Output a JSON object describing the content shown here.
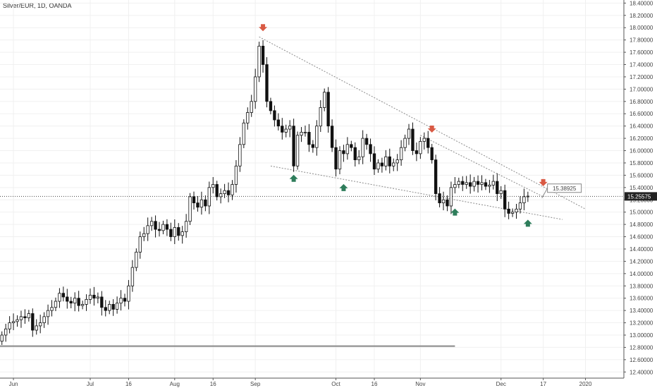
{
  "title": "Silver/EUR, 1D, OANDA",
  "colors": {
    "up": "#ffffff",
    "down": "#111111",
    "wick": "#111111",
    "grid": "#f0f0f0",
    "axis": "#555555",
    "arrow_up": "#2e7d5b",
    "arrow_down": "#d95a44",
    "price_line": "#444444",
    "trendline": "#8a8a8a",
    "support": "#888888"
  },
  "chart_data": {
    "type": "candlestick",
    "symbol": "Silver/EUR",
    "timeframe": "1D",
    "source": "OANDA",
    "y_axis": {
      "side": "right",
      "ylim": [
        12.3,
        18.45
      ],
      "ticks": [
        "12.40000",
        "12.60000",
        "12.80000",
        "13.00000",
        "13.20000",
        "13.40000",
        "13.60000",
        "13.80000",
        "14.00000",
        "14.20000",
        "14.40000",
        "14.60000",
        "14.80000",
        "15.00000",
        "15.20000",
        "15.40000",
        "15.60000",
        "15.80000",
        "16.00000",
        "16.20000",
        "16.40000",
        "16.60000",
        "16.80000",
        "17.00000",
        "17.20000",
        "17.40000",
        "17.60000",
        "17.80000",
        "18.00000",
        "18.20000",
        "18.40000"
      ],
      "tick_values": [
        12.4,
        12.6,
        12.8,
        13.0,
        13.2,
        13.4,
        13.6,
        13.8,
        14.0,
        14.2,
        14.4,
        14.6,
        14.8,
        15.0,
        15.2,
        15.4,
        15.6,
        15.8,
        16.0,
        16.2,
        16.4,
        16.6,
        16.8,
        17.0,
        17.2,
        17.4,
        17.6,
        17.8,
        18.0,
        18.2,
        18.4
      ]
    },
    "x_axis": {
      "labels": [
        {
          "text": "Jun",
          "idx": 3
        },
        {
          "text": "Jul",
          "idx": 23
        },
        {
          "text": "16",
          "idx": 33
        },
        {
          "text": "Aug",
          "idx": 45
        },
        {
          "text": "16",
          "idx": 55
        },
        {
          "text": "Sep",
          "idx": 66
        },
        {
          "text": "Oct",
          "idx": 87
        },
        {
          "text": "16",
          "idx": 97
        },
        {
          "text": "Nov",
          "idx": 109
        },
        {
          "text": "Dec",
          "idx": 130
        },
        {
          "text": "17",
          "idx": 141
        },
        {
          "text": "2020",
          "idx": 152
        }
      ],
      "idx_range": [
        -0.5,
        162
      ]
    },
    "grid": true,
    "current_price": {
      "value": 15.25575,
      "label": "15.25575"
    },
    "callout": {
      "value": 15.38925,
      "label": "15.38925",
      "idx": 141
    },
    "closes": [
      13.0,
      13.1,
      13.2,
      13.22,
      13.25,
      13.3,
      13.28,
      13.35,
      13.08,
      13.15,
      13.2,
      13.3,
      13.4,
      13.45,
      13.55,
      13.68,
      13.62,
      13.55,
      13.52,
      13.6,
      13.48,
      13.5,
      13.58,
      13.65,
      13.6,
      13.62,
      13.45,
      13.4,
      13.5,
      13.42,
      13.52,
      13.6,
      13.55,
      13.8,
      14.1,
      14.35,
      14.6,
      14.65,
      14.78,
      14.85,
      14.72,
      14.7,
      14.8,
      14.72,
      14.6,
      14.75,
      14.62,
      14.68,
      14.85,
      15.25,
      15.15,
      15.08,
      15.2,
      15.1,
      15.4,
      15.45,
      15.25,
      15.3,
      15.35,
      15.28,
      15.45,
      15.75,
      16.1,
      16.45,
      16.62,
      16.8,
      17.2,
      17.7,
      17.4,
      16.8,
      16.65,
      16.5,
      16.4,
      16.3,
      16.35,
      16.4,
      15.75,
      16.25,
      16.3,
      16.3,
      16.1,
      16.05,
      16.4,
      16.7,
      16.95,
      16.4,
      16.05,
      15.7,
      16.0,
      15.95,
      16.1,
      16.05,
      15.85,
      15.9,
      16.2,
      16.1,
      15.95,
      15.7,
      15.8,
      15.75,
      15.9,
      15.75,
      15.8,
      15.85,
      16.05,
      16.2,
      16.35,
      16.0,
      15.95,
      16.15,
      16.2,
      16.05,
      15.85,
      15.3,
      15.15,
      15.2,
      15.1,
      15.4,
      15.45,
      15.5,
      15.45,
      15.48,
      15.42,
      15.5,
      15.45,
      15.48,
      15.42,
      15.44,
      15.5,
      15.3,
      15.35,
      15.05,
      14.98,
      15.0,
      15.05,
      15.15,
      15.25,
      15.26
    ],
    "open0": 12.9,
    "annotations": {
      "resistance_line": {
        "from": {
          "idx": 67,
          "value": 17.85
        },
        "to": {
          "idx": 152,
          "value": 15.05
        }
      },
      "resistance_line_2": {
        "from": {
          "idx": 109,
          "value": 16.25
        },
        "to": {
          "idx": 141,
          "value": 15.25
        }
      },
      "support_line": {
        "from": {
          "idx": 70,
          "value": 15.75
        },
        "to": {
          "idx": 146,
          "value": 14.88
        }
      },
      "horizontal_support": {
        "from_idx": -0.5,
        "to_idx": 118,
        "value": 12.82
      },
      "arrows_up": [
        {
          "idx": 76,
          "value": 15.55
        },
        {
          "idx": 89,
          "value": 15.4
        },
        {
          "idx": 118,
          "value": 15.0
        },
        {
          "idx": 137,
          "value": 14.82
        }
      ],
      "arrows_down": [
        {
          "idx": 68,
          "value": 18.0
        },
        {
          "idx": 112,
          "value": 16.35
        },
        {
          "idx": 141,
          "value": 15.48
        }
      ]
    }
  }
}
